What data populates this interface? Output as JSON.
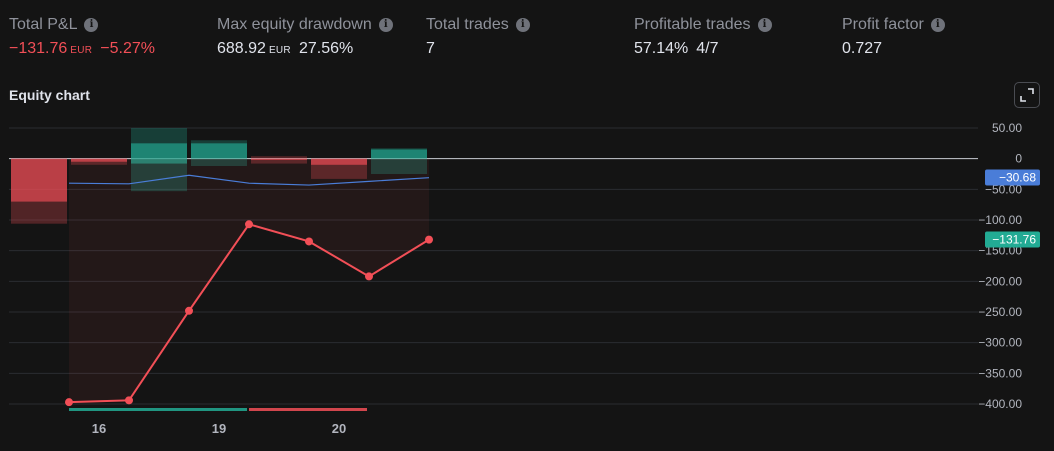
{
  "stats": [
    {
      "label": "Total P&L",
      "value": "−131.76",
      "currency": "EUR",
      "pct": "−5.27%",
      "negative": true
    },
    {
      "label": "Max equity drawdown",
      "value": "688.92",
      "currency": "EUR",
      "pct": "27.56%",
      "negative": false
    },
    {
      "label": "Total trades",
      "value": "7",
      "currency": "",
      "pct": "",
      "negative": false
    },
    {
      "label": "Profitable trades",
      "value": "57.14%",
      "currency": "",
      "pct": "4/7",
      "negative": false
    },
    {
      "label": "Profit factor",
      "value": "0.727",
      "currency": "",
      "pct": "",
      "negative": false
    }
  ],
  "section_title": "Equity chart",
  "icons": {
    "info": "info-icon",
    "expand": "expand-icon"
  },
  "colors": {
    "red": "#f24f57",
    "green": "#22ab94",
    "blue": "#4a7dd8",
    "grid": "#2a2c31",
    "text": "#b2b5be"
  },
  "chart_data": {
    "type": "line",
    "y_ticks": [
      50,
      0,
      -50,
      -100,
      -150,
      -200,
      -250,
      -300,
      -350,
      -400
    ],
    "y_tick_labels": [
      "50.00",
      "0",
      "−50.00",
      "−100.00",
      "−150.00",
      "−200.00",
      "−250.00",
      "−300.00",
      "−350.00",
      "−400.00"
    ],
    "ylim": [
      -405,
      62
    ],
    "x_tick_labels": [
      {
        "label": "16",
        "x": 1.5
      },
      {
        "label": "19",
        "x": 3.5
      },
      {
        "label": "20",
        "x": 5.5
      }
    ],
    "xlim": [
      0,
      16
    ],
    "equity": {
      "x": [
        1,
        2,
        3,
        4,
        5,
        6,
        7
      ],
      "y": [
        -397,
        -394,
        -248,
        -107,
        -135,
        -192,
        -132
      ]
    },
    "buy_hold": {
      "x": [
        1,
        2,
        3,
        4,
        5,
        6,
        7
      ],
      "y": [
        -40,
        -41,
        -27,
        -40,
        -43,
        -37,
        -31
      ]
    },
    "candles": [
      {
        "x": 0.5,
        "open": 0,
        "close": -70,
        "high": 0,
        "low": -106
      },
      {
        "x": 1.5,
        "open": 0,
        "close": -5,
        "high": 0,
        "low": -10
      },
      {
        "x": 2.5,
        "open": -8,
        "close": 25,
        "high": 50,
        "low": -53
      },
      {
        "x": 3.5,
        "open": 0,
        "close": 25,
        "high": 30,
        "low": -12
      },
      {
        "x": 4.5,
        "open": 0,
        "close": -2,
        "high": 4,
        "low": -8
      },
      {
        "x": 5.5,
        "open": 0,
        "close": -10,
        "high": 0,
        "low": -33
      },
      {
        "x": 6.5,
        "open": 0,
        "close": 15,
        "high": 17,
        "low": -25
      }
    ],
    "trade_bars": [
      {
        "x0": 1,
        "x1": 4,
        "color": "green"
      },
      {
        "x0": 4,
        "x1": 6,
        "color": "red"
      }
    ],
    "last_values": [
      {
        "value": -30.68,
        "label": "−30.68",
        "color": "blue"
      },
      {
        "value": -131.76,
        "label": "−131.76",
        "color": "green"
      }
    ]
  }
}
